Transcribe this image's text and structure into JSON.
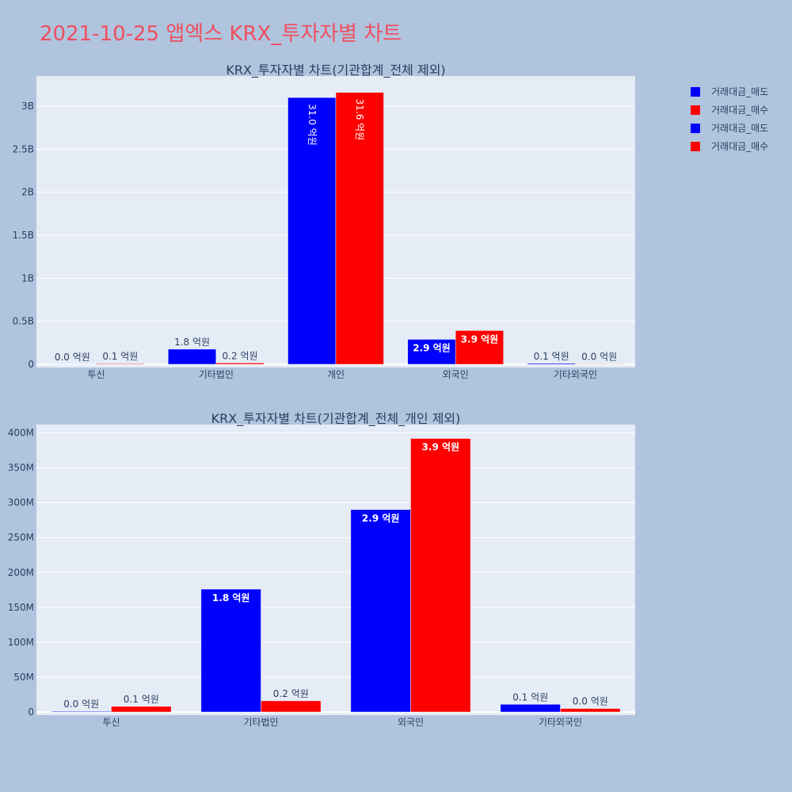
{
  "title": "2021-10-25 앱엑스 KRX_투자자별 차트",
  "legend": [
    {
      "label": "거래대금_매도",
      "color": "#0000ff"
    },
    {
      "label": "거래대금_매수",
      "color": "#ff0000"
    },
    {
      "label": "거래대금_매도",
      "color": "#0000ff"
    },
    {
      "label": "거래대금_매수",
      "color": "#ff0000"
    }
  ],
  "chart_data": [
    {
      "type": "bar",
      "title": "KRX_투자자별 차트(기관합계_전체 제외)",
      "categories": [
        "투신",
        "기타법인",
        "개인",
        "외국인",
        "기타외국인"
      ],
      "ylim": [
        0,
        3350000000
      ],
      "yticks": [
        0,
        500000000,
        1000000000,
        1500000000,
        2000000000,
        2500000000,
        3000000000
      ],
      "ytick_labels": [
        "0",
        "0.5B",
        "1B",
        "1.5B",
        "2B",
        "2.5B",
        "3B"
      ],
      "series": [
        {
          "name": "거래대금_매도",
          "color": "#0000ff",
          "values": [
            1000000,
            176000000,
            3100000000,
            290000000,
            11000000
          ],
          "labels": [
            "0.0 억원",
            "1.8 억원",
            "31.0 억원",
            "2.9 억원",
            "0.1 억원"
          ]
        },
        {
          "name": "거래대금_매수",
          "color": "#ff0000",
          "values": [
            8000000,
            16000000,
            3160000000,
            392000000,
            5000000
          ],
          "labels": [
            "0.1 억원",
            "0.2 억원",
            "31.6 억원",
            "3.9 억원",
            "0.0 억원"
          ]
        }
      ]
    },
    {
      "type": "bar",
      "title": "KRX_투자자별 차트(기관합계_전체_개인 제외)",
      "categories": [
        "투신",
        "기타법인",
        "외국인",
        "기타외국인"
      ],
      "ylim": [
        0,
        412000000
      ],
      "yticks": [
        0,
        50000000,
        100000000,
        150000000,
        200000000,
        250000000,
        300000000,
        350000000,
        400000000
      ],
      "ytick_labels": [
        "0",
        "50M",
        "100M",
        "150M",
        "200M",
        "250M",
        "300M",
        "350M",
        "400M"
      ],
      "series": [
        {
          "name": "거래대금_매도",
          "color": "#0000ff",
          "values": [
            1000000,
            176000000,
            290000000,
            11000000
          ],
          "labels": [
            "0.0 억원",
            "1.8 억원",
            "2.9 억원",
            "0.1 억원"
          ]
        },
        {
          "name": "거래대금_매수",
          "color": "#ff0000",
          "values": [
            8000000,
            16000000,
            392000000,
            5000000
          ],
          "labels": [
            "0.1 억원",
            "0.2 억원",
            "3.9 억원",
            "0.0 억원"
          ]
        }
      ]
    }
  ]
}
